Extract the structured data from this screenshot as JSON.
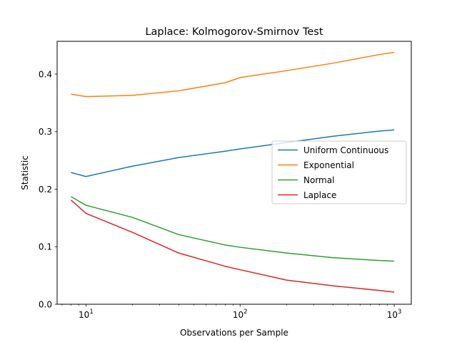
{
  "chart_data": {
    "type": "line",
    "title": "Laplace: Kolmogorov-Smirnov Test",
    "xlabel": "Observations per Sample",
    "ylabel": "Statistic",
    "xscale": "log",
    "xlim": [
      6.5,
      1290
    ],
    "ylim": [
      0.0,
      0.457
    ],
    "x_ticks": [
      {
        "value": 10,
        "base": "10",
        "exp": "1"
      },
      {
        "value": 100,
        "base": "10",
        "exp": "2"
      },
      {
        "value": 1000,
        "base": "10",
        "exp": "3"
      }
    ],
    "y_ticks": [
      {
        "value": 0.0,
        "label": "0.0"
      },
      {
        "value": 0.1,
        "label": "0.1"
      },
      {
        "value": 0.2,
        "label": "0.2"
      },
      {
        "value": 0.3,
        "label": "0.3"
      },
      {
        "value": 0.4,
        "label": "0.4"
      }
    ],
    "grid": false,
    "legend_position": "center-right",
    "x": [
      8,
      10,
      20,
      40,
      80,
      100,
      200,
      400,
      800,
      1000
    ],
    "series": [
      {
        "name": "Uniform Continuous",
        "color": "#1f77b4",
        "values": [
          0.229,
          0.222,
          0.24,
          0.255,
          0.266,
          0.27,
          0.281,
          0.292,
          0.301,
          0.303
        ]
      },
      {
        "name": "Exponential",
        "color": "#ff7f0e",
        "values": [
          0.365,
          0.361,
          0.363,
          0.371,
          0.385,
          0.394,
          0.406,
          0.419,
          0.434,
          0.438
        ]
      },
      {
        "name": "Normal",
        "color": "#2ca02c",
        "values": [
          0.187,
          0.172,
          0.151,
          0.121,
          0.103,
          0.099,
          0.089,
          0.081,
          0.076,
          0.075
        ]
      },
      {
        "name": "Laplace",
        "color": "#d62728",
        "values": [
          0.181,
          0.158,
          0.125,
          0.089,
          0.066,
          0.06,
          0.042,
          0.032,
          0.024,
          0.021
        ]
      }
    ]
  }
}
